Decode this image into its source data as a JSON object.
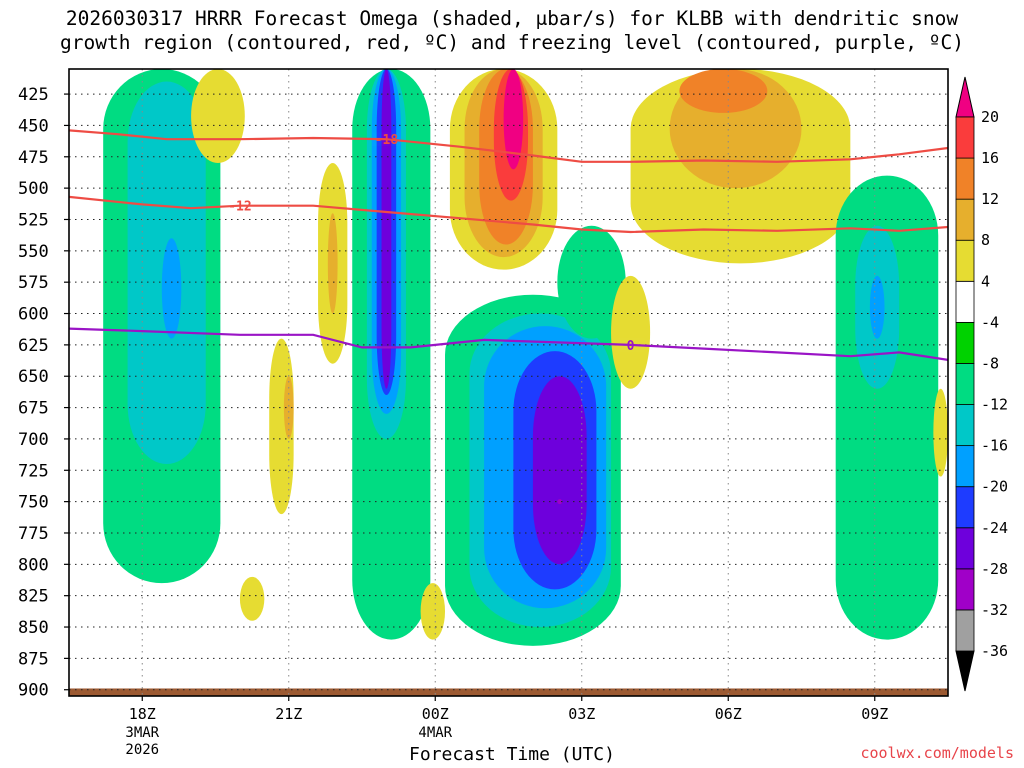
{
  "title_line1": "2026030317 HRRR Forecast Omega (shaded, μbar/s) for KLBB with dendritic snow",
  "title_line2": "growth region (contoured, red, ºC) and freezing level (contoured, purple, ºC)",
  "credit": "coolwx.com/models",
  "chart_data": {
    "type": "heatmap",
    "xlabel": "Forecast Time (UTC)",
    "ylabel": "",
    "x_hours": [
      -0.5,
      17.5
    ],
    "x_ticks": [
      {
        "hour": 1,
        "label": "18Z",
        "sub": [
          "3MAR",
          "2026"
        ]
      },
      {
        "hour": 4,
        "label": "21Z",
        "sub": []
      },
      {
        "hour": 7,
        "label": "00Z",
        "sub": [
          "4MAR"
        ]
      },
      {
        "hour": 10,
        "label": "03Z",
        "sub": []
      },
      {
        "hour": 13,
        "label": "06Z",
        "sub": []
      },
      {
        "hour": 16,
        "label": "09Z",
        "sub": []
      }
    ],
    "y_pressure_range_mb": [
      405,
      905
    ],
    "y_ticks": [
      425,
      450,
      475,
      500,
      525,
      550,
      575,
      600,
      625,
      650,
      675,
      700,
      725,
      750,
      775,
      800,
      825,
      850,
      875,
      900
    ],
    "grid": true,
    "colorbar": {
      "levels": [
        -36,
        -32,
        -28,
        -24,
        -20,
        -16,
        -12,
        -8,
        -4,
        4,
        8,
        12,
        16,
        20
      ],
      "colors": [
        "#000000",
        "#a0a0a0",
        "#a000c8",
        "#6e00dc",
        "#1e3cff",
        "#00a0ff",
        "#00c8c8",
        "#00dc82",
        "#00d200",
        "#ffffff",
        "#e6dc32",
        "#e6af2d",
        "#f08228",
        "#fa3c3c",
        "#f00082"
      ]
    },
    "omega_bands": [
      {
        "value": -8,
        "t0": 0.2,
        "t1": 2.6,
        "p0": 405,
        "p1": 815
      },
      {
        "value": -12,
        "t0": 0.7,
        "t1": 2.3,
        "p0": 415,
        "p1": 720
      },
      {
        "value": -16,
        "t0": 1.4,
        "t1": 1.8,
        "p0": 540,
        "p1": 620
      },
      {
        "value": 4,
        "t0": 2.0,
        "t1": 3.1,
        "p0": 405,
        "p1": 480
      },
      {
        "value": 4,
        "t0": 3.6,
        "t1": 4.1,
        "p0": 620,
        "p1": 760
      },
      {
        "value": 8,
        "t0": 3.9,
        "t1": 4.1,
        "p0": 650,
        "p1": 700
      },
      {
        "value": 4,
        "t0": 3.0,
        "t1": 3.5,
        "p0": 810,
        "p1": 845
      },
      {
        "value": 4,
        "t0": 4.6,
        "t1": 5.2,
        "p0": 480,
        "p1": 640
      },
      {
        "value": 8,
        "t0": 4.8,
        "t1": 5.0,
        "p0": 520,
        "p1": 600
      },
      {
        "value": -8,
        "t0": 5.3,
        "t1": 6.9,
        "p0": 405,
        "p1": 860
      },
      {
        "value": -12,
        "t0": 5.6,
        "t1": 6.4,
        "p0": 405,
        "p1": 700
      },
      {
        "value": -16,
        "t0": 5.7,
        "t1": 6.3,
        "p0": 405,
        "p1": 680
      },
      {
        "value": -20,
        "t0": 5.8,
        "t1": 6.2,
        "p0": 405,
        "p1": 665
      },
      {
        "value": -24,
        "t0": 5.9,
        "t1": 6.1,
        "p0": 405,
        "p1": 660
      },
      {
        "value": 4,
        "t0": 6.7,
        "t1": 7.2,
        "p0": 815,
        "p1": 860
      },
      {
        "value": 4,
        "t0": 7.3,
        "t1": 9.5,
        "p0": 405,
        "p1": 565
      },
      {
        "value": 8,
        "t0": 7.6,
        "t1": 9.2,
        "p0": 405,
        "p1": 555
      },
      {
        "value": 12,
        "t0": 7.9,
        "t1": 9.0,
        "p0": 405,
        "p1": 545
      },
      {
        "value": 16,
        "t0": 8.2,
        "t1": 8.9,
        "p0": 405,
        "p1": 510
      },
      {
        "value": 20,
        "t0": 8.4,
        "t1": 8.8,
        "p0": 405,
        "p1": 485
      },
      {
        "value": -8,
        "t0": 7.2,
        "t1": 10.8,
        "p0": 585,
        "p1": 865
      },
      {
        "value": -12,
        "t0": 7.7,
        "t1": 10.6,
        "p0": 600,
        "p1": 850
      },
      {
        "value": -16,
        "t0": 8.0,
        "t1": 10.5,
        "p0": 610,
        "p1": 835
      },
      {
        "value": -20,
        "t0": 8.6,
        "t1": 10.3,
        "p0": 630,
        "p1": 820
      },
      {
        "value": -24,
        "t0": 9.0,
        "t1": 10.1,
        "p0": 650,
        "p1": 800
      },
      {
        "value": -28,
        "t0": 9.5,
        "t1": 9.6,
        "p0": 748,
        "p1": 752
      },
      {
        "value": -8,
        "t0": 9.5,
        "t1": 10.9,
        "p0": 530,
        "p1": 620
      },
      {
        "value": 4,
        "t0": 10.6,
        "t1": 11.4,
        "p0": 570,
        "p1": 660
      },
      {
        "value": 4,
        "t0": 11.0,
        "t1": 15.5,
        "p0": 405,
        "p1": 560
      },
      {
        "value": 8,
        "t0": 11.8,
        "t1": 14.5,
        "p0": 405,
        "p1": 500
      },
      {
        "value": 12,
        "t0": 12.0,
        "t1": 13.8,
        "p0": 405,
        "p1": 440
      },
      {
        "value": -8,
        "t0": 15.2,
        "t1": 17.3,
        "p0": 490,
        "p1": 860
      },
      {
        "value": -12,
        "t0": 15.6,
        "t1": 16.5,
        "p0": 530,
        "p1": 660
      },
      {
        "value": -16,
        "t0": 15.9,
        "t1": 16.2,
        "p0": 570,
        "p1": 620
      },
      {
        "value": 4,
        "t0": 17.2,
        "t1": 17.5,
        "p0": 660,
        "p1": 730
      }
    ],
    "contours": [
      {
        "label": "-18",
        "color": "#ee4c44",
        "label_hour": 6.0,
        "points": [
          [
            -0.5,
            454
          ],
          [
            0.5,
            457
          ],
          [
            1.5,
            461
          ],
          [
            3,
            461
          ],
          [
            4.5,
            460
          ],
          [
            6,
            461
          ],
          [
            7.5,
            467
          ],
          [
            9,
            474
          ],
          [
            10,
            479
          ],
          [
            11,
            479
          ],
          [
            12.5,
            478
          ],
          [
            14,
            479
          ],
          [
            15.5,
            477
          ],
          [
            16.5,
            473
          ],
          [
            17.5,
            468
          ]
        ]
      },
      {
        "label": "-12",
        "color": "#ee4c44",
        "label_hour": 3.0,
        "points": [
          [
            -0.5,
            507
          ],
          [
            1,
            513
          ],
          [
            2,
            516
          ],
          [
            3,
            514
          ],
          [
            4.5,
            514
          ],
          [
            6,
            519
          ],
          [
            7.5,
            524
          ],
          [
            9,
            529
          ],
          [
            10,
            533
          ],
          [
            11,
            535
          ],
          [
            12.5,
            533
          ],
          [
            14,
            534
          ],
          [
            15.5,
            532
          ],
          [
            16.5,
            534
          ],
          [
            17.5,
            531
          ]
        ]
      },
      {
        "label": "0",
        "color": "#9a14c6",
        "label_hour": 11.0,
        "points": [
          [
            -0.5,
            612
          ],
          [
            1,
            614
          ],
          [
            3,
            617
          ],
          [
            4.5,
            617
          ],
          [
            5.5,
            627
          ],
          [
            6.5,
            627
          ],
          [
            8,
            621
          ],
          [
            9.5,
            623
          ],
          [
            11,
            625
          ],
          [
            12.5,
            628
          ],
          [
            14,
            631
          ],
          [
            15.5,
            634
          ],
          [
            16.5,
            631
          ],
          [
            17.5,
            637
          ]
        ]
      }
    ],
    "ground_band_mb": [
      899,
      905
    ]
  }
}
